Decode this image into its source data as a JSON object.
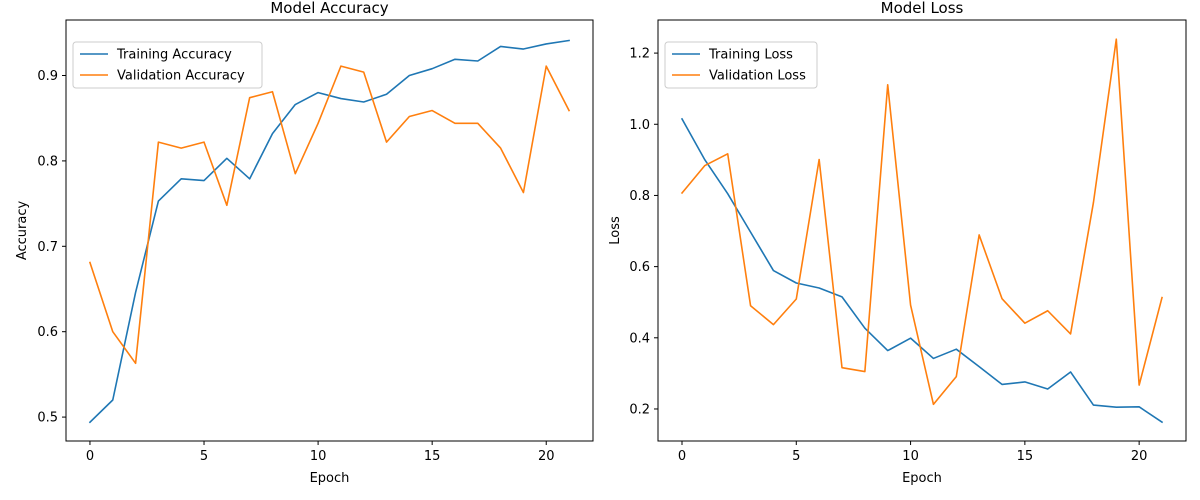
{
  "chart_data": [
    {
      "type": "line",
      "title": "Model Accuracy",
      "xlabel": "Epoch",
      "ylabel": "Accuracy",
      "xlim": [
        -1.05,
        22.05
      ],
      "ylim": [
        0.472,
        0.965
      ],
      "xticks": [
        0,
        5,
        10,
        15,
        20
      ],
      "yticks": [
        0.5,
        0.6,
        0.7,
        0.8,
        0.9
      ],
      "ytick_labels": [
        "0.5",
        "0.6",
        "0.7",
        "0.8",
        "0.9"
      ],
      "grid": false,
      "legend_position": "upper-left",
      "x": [
        0,
        1,
        2,
        3,
        4,
        5,
        6,
        7,
        8,
        9,
        10,
        11,
        12,
        13,
        14,
        15,
        16,
        17,
        18,
        19,
        20,
        21
      ],
      "series": [
        {
          "name": "Training Accuracy",
          "color": "#1f77b4",
          "values": [
            0.494,
            0.52,
            0.646,
            0.753,
            0.779,
            0.777,
            0.803,
            0.779,
            0.832,
            0.866,
            0.88,
            0.873,
            0.869,
            0.878,
            0.9,
            0.908,
            0.919,
            0.917,
            0.934,
            0.931,
            0.937,
            0.941
          ]
        },
        {
          "name": "Validation Accuracy",
          "color": "#ff7f0e",
          "values": [
            0.681,
            0.6,
            0.563,
            0.822,
            0.815,
            0.822,
            0.748,
            0.874,
            0.881,
            0.785,
            0.844,
            0.911,
            0.904,
            0.822,
            0.852,
            0.859,
            0.844,
            0.844,
            0.815,
            0.763,
            0.911,
            0.859
          ]
        }
      ]
    },
    {
      "type": "line",
      "title": "Model Loss",
      "xlabel": "Epoch",
      "ylabel": "Loss",
      "xlim": [
        -1.05,
        22.05
      ],
      "ylim": [
        0.11,
        1.293
      ],
      "xticks": [
        0,
        5,
        10,
        15,
        20
      ],
      "yticks": [
        0.2,
        0.4,
        0.6,
        0.8,
        1.0,
        1.2
      ],
      "ytick_labels": [
        "0.2",
        "0.4",
        "0.6",
        "0.8",
        "1.0",
        "1.2"
      ],
      "grid": false,
      "legend_position": "upper-left",
      "x": [
        0,
        1,
        2,
        3,
        4,
        5,
        6,
        7,
        8,
        9,
        10,
        11,
        12,
        13,
        14,
        15,
        16,
        17,
        18,
        19,
        20,
        21
      ],
      "series": [
        {
          "name": "Training Loss",
          "color": "#1f77b4",
          "values": [
            1.015,
            0.9,
            0.805,
            0.697,
            0.589,
            0.554,
            0.54,
            0.515,
            0.427,
            0.364,
            0.399,
            0.342,
            0.368,
            0.319,
            0.269,
            0.276,
            0.256,
            0.304,
            0.211,
            0.205,
            0.206,
            0.163
          ]
        },
        {
          "name": "Validation Loss",
          "color": "#ff7f0e",
          "values": [
            0.807,
            0.884,
            0.917,
            0.49,
            0.437,
            0.509,
            0.901,
            0.316,
            0.305,
            1.111,
            0.492,
            0.213,
            0.291,
            0.689,
            0.51,
            0.441,
            0.476,
            0.411,
            0.78,
            1.239,
            0.267,
            0.513
          ]
        }
      ]
    }
  ]
}
